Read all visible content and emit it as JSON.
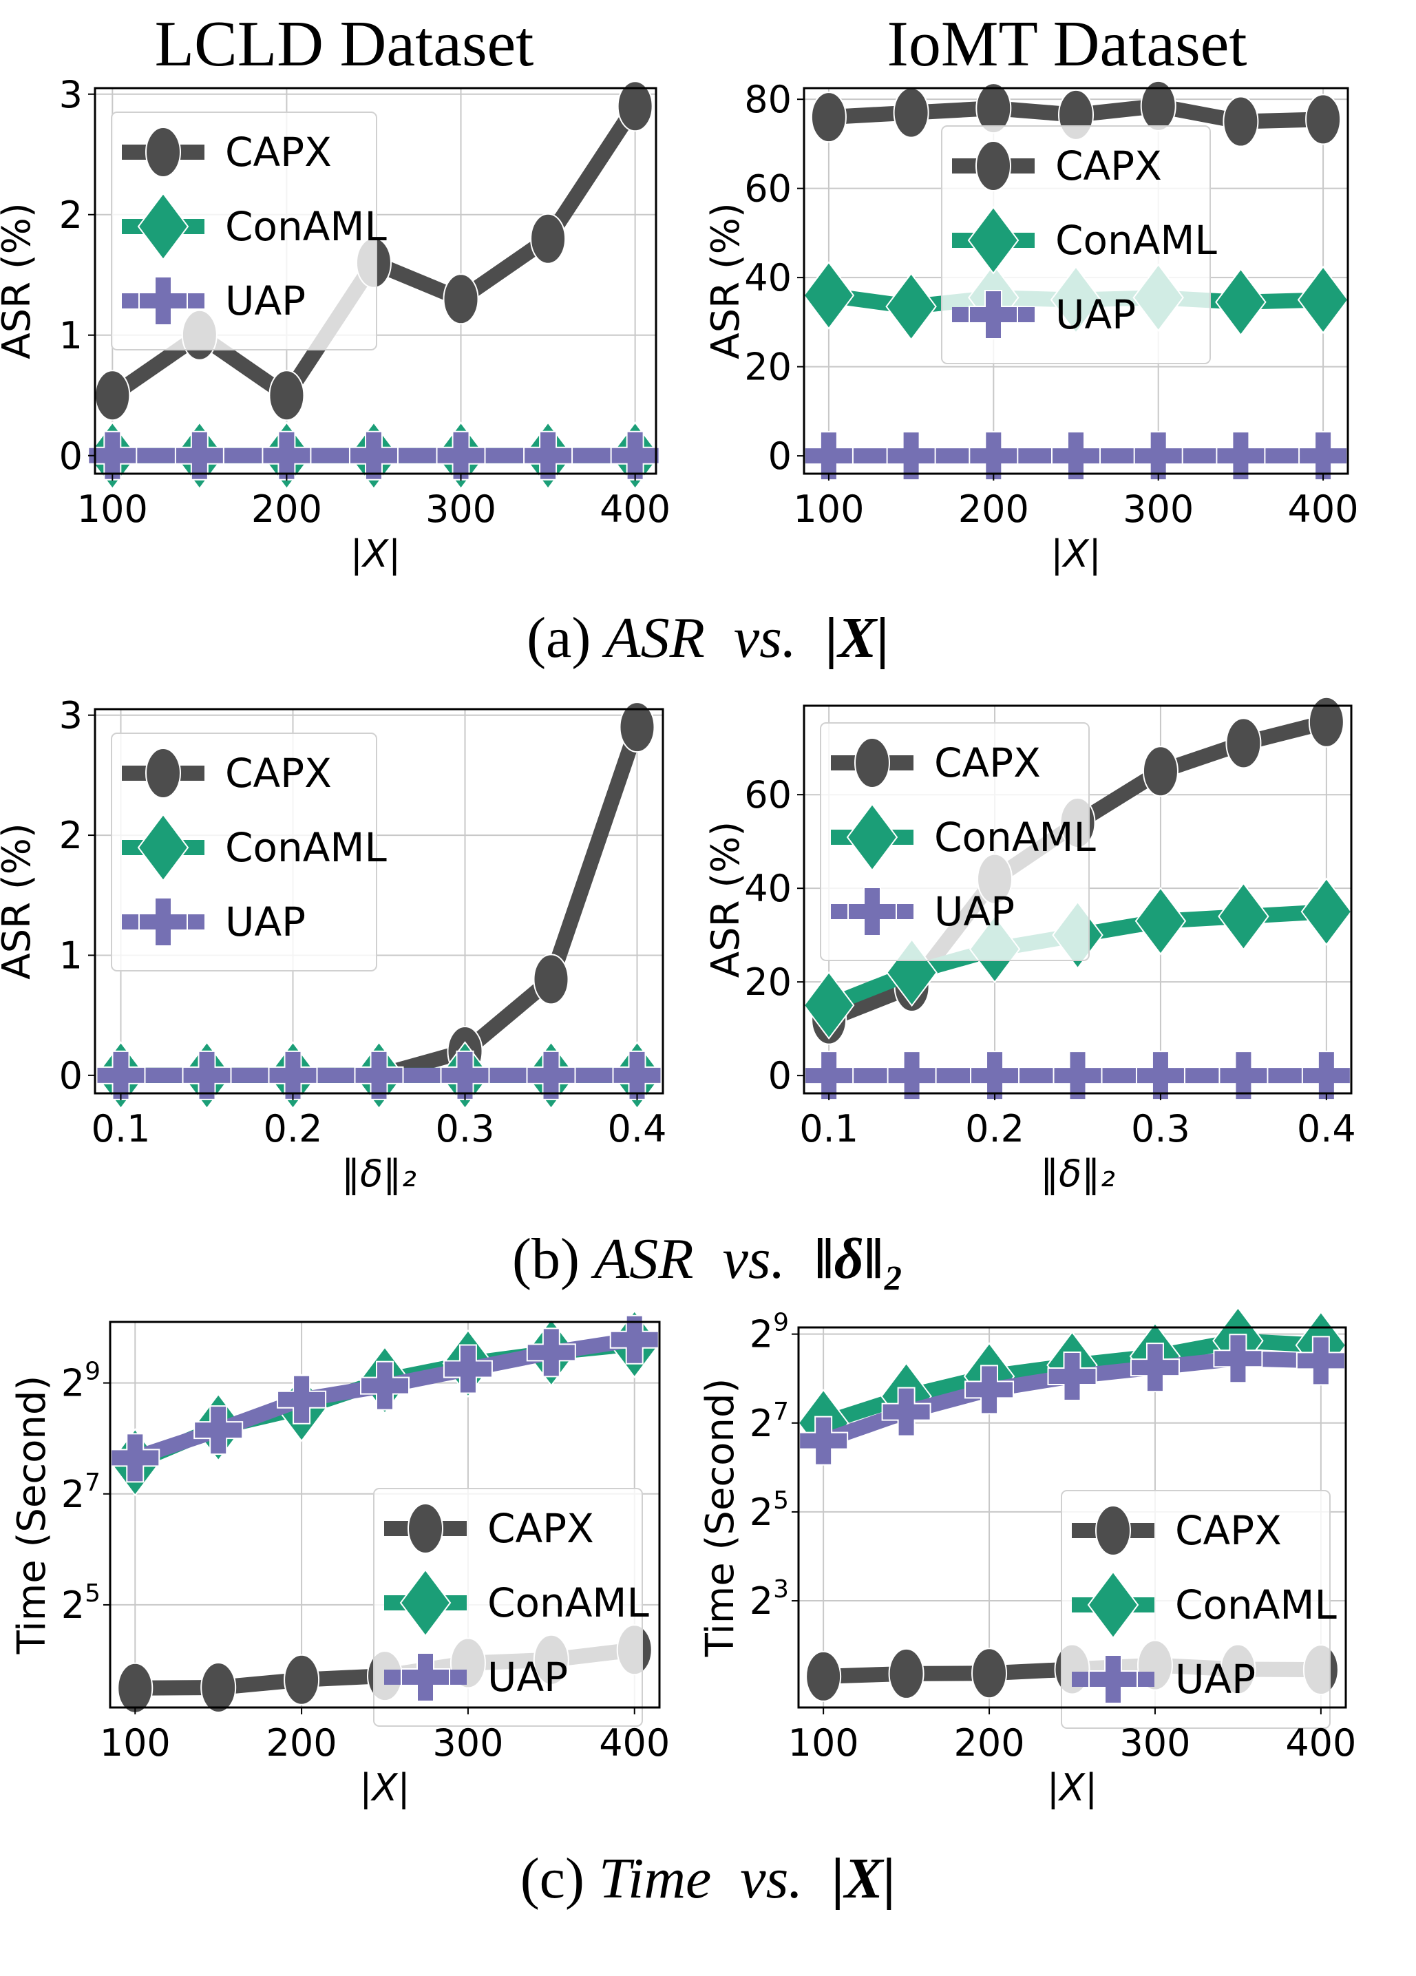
{
  "titles": {
    "left": "LCLD Dataset",
    "right": "IoMT Dataset"
  },
  "captions": {
    "a": {
      "prefix": "(a) ",
      "metric": "ASR",
      "vs": "vs.",
      "var": "|X|"
    },
    "b": {
      "prefix": "(b) ",
      "metric": "ASR",
      "vs": "vs.",
      "var": "‖δ‖₂"
    },
    "c": {
      "prefix": "(c) ",
      "metric": "Time",
      "vs": "vs.",
      "var": "|X|"
    }
  },
  "colors": {
    "CAPX": "#4d4d4d",
    "ConAML": "#1b9e77",
    "UAP": "#7570b3"
  },
  "chart_data": [
    {
      "id": "a-lcld",
      "type": "line",
      "title": "LCLD Dataset",
      "xlabel": "|X|",
      "ylabel": "ASR (%)",
      "x": [
        100,
        150,
        200,
        250,
        300,
        350,
        400
      ],
      "xticks": [
        100,
        200,
        300,
        400
      ],
      "xtick_labels": [
        "100",
        "200",
        "300",
        "400"
      ],
      "yticks": [
        0,
        1,
        2,
        3
      ],
      "ytick_labels": [
        "0",
        "1",
        "2",
        "3"
      ],
      "xlim": [
        90,
        412
      ],
      "ylim": [
        -0.15,
        3.05
      ],
      "yscale": "linear",
      "grid": true,
      "legend_position": "upper-left",
      "series": [
        {
          "name": "CAPX",
          "marker": "circle",
          "values": [
            0.5,
            1.0,
            0.5,
            1.6,
            1.3,
            1.8,
            2.9
          ]
        },
        {
          "name": "ConAML",
          "marker": "diamond",
          "values": [
            0,
            0,
            0,
            0,
            0,
            0,
            0
          ]
        },
        {
          "name": "UAP",
          "marker": "plus",
          "values": [
            0,
            0,
            0,
            0,
            0,
            0,
            0
          ]
        }
      ]
    },
    {
      "id": "a-iomt",
      "type": "line",
      "title": "IoMT Dataset",
      "xlabel": "|X|",
      "ylabel": "ASR (%)",
      "x": [
        100,
        150,
        200,
        250,
        300,
        350,
        400
      ],
      "xticks": [
        100,
        200,
        300,
        400
      ],
      "xtick_labels": [
        "100",
        "200",
        "300",
        "400"
      ],
      "yticks": [
        0,
        20,
        40,
        60,
        80
      ],
      "ytick_labels": [
        "0",
        "20",
        "40",
        "60",
        "80"
      ],
      "xlim": [
        85,
        415
      ],
      "ylim": [
        -4,
        82.5
      ],
      "yscale": "linear",
      "grid": true,
      "legend_position": "upper-center",
      "series": [
        {
          "name": "CAPX",
          "marker": "circle",
          "values": [
            76,
            77,
            78,
            76.5,
            78.5,
            75,
            75.5
          ]
        },
        {
          "name": "ConAML",
          "marker": "diamond",
          "values": [
            36,
            33.5,
            35.5,
            35,
            35.5,
            34.5,
            35
          ]
        },
        {
          "name": "UAP",
          "marker": "plus",
          "values": [
            0,
            0,
            0,
            0,
            0,
            0,
            0
          ]
        }
      ]
    },
    {
      "id": "b-lcld",
      "type": "line",
      "xlabel": "‖δ‖₂",
      "ylabel": "ASR (%)",
      "x": [
        0.1,
        0.15,
        0.2,
        0.25,
        0.3,
        0.35,
        0.4
      ],
      "xticks": [
        0.1,
        0.2,
        0.3,
        0.4
      ],
      "xtick_labels": [
        "0.1",
        "0.2",
        "0.3",
        "0.4"
      ],
      "yticks": [
        0,
        1,
        2,
        3
      ],
      "ytick_labels": [
        "0",
        "1",
        "2",
        "3"
      ],
      "xlim": [
        0.085,
        0.415
      ],
      "ylim": [
        -0.15,
        3.05
      ],
      "yscale": "linear",
      "grid": true,
      "legend_position": "upper-left",
      "series": [
        {
          "name": "CAPX",
          "marker": "circle",
          "values": [
            0,
            0,
            0,
            0,
            0.2,
            0.8,
            2.9
          ]
        },
        {
          "name": "ConAML",
          "marker": "diamond",
          "values": [
            0,
            0,
            0,
            0,
            0,
            0,
            0
          ]
        },
        {
          "name": "UAP",
          "marker": "plus",
          "values": [
            0,
            0,
            0,
            0,
            0,
            0,
            0
          ]
        }
      ]
    },
    {
      "id": "b-iomt",
      "type": "line",
      "xlabel": "‖δ‖₂",
      "ylabel": "ASR (%)",
      "x": [
        0.1,
        0.15,
        0.2,
        0.25,
        0.3,
        0.35,
        0.4
      ],
      "xticks": [
        0.1,
        0.2,
        0.3,
        0.4
      ],
      "xtick_labels": [
        "0.1",
        "0.2",
        "0.3",
        "0.4"
      ],
      "yticks": [
        0,
        20,
        40,
        60
      ],
      "ytick_labels": [
        "0",
        "20",
        "40",
        "60"
      ],
      "xlim": [
        0.085,
        0.415
      ],
      "ylim": [
        -3.8,
        79
      ],
      "yscale": "linear",
      "grid": true,
      "legend_position": "upper-left",
      "series": [
        {
          "name": "CAPX",
          "marker": "circle",
          "values": [
            12,
            19,
            42,
            54,
            65,
            71,
            75.5
          ]
        },
        {
          "name": "ConAML",
          "marker": "diamond",
          "values": [
            15,
            22,
            27,
            30,
            33,
            34,
            35
          ]
        },
        {
          "name": "UAP",
          "marker": "plus",
          "values": [
            0,
            0,
            0,
            0,
            0,
            0,
            0
          ]
        }
      ]
    },
    {
      "id": "c-lcld",
      "type": "line",
      "xlabel": "|X|",
      "ylabel": "Time (Second)",
      "x": [
        100,
        150,
        200,
        250,
        300,
        350,
        400
      ],
      "xticks": [
        100,
        200,
        300,
        400
      ],
      "xtick_labels": [
        "100",
        "200",
        "300",
        "400"
      ],
      "yticks_exp": [
        5,
        7,
        9
      ],
      "ytick_base": "2",
      "xlim": [
        85,
        415
      ],
      "ylim_log2": [
        3.15,
        10.1
      ],
      "yscale": "log2",
      "grid": true,
      "legend_position": "center-right",
      "series": [
        {
          "name": "CAPX",
          "marker": "circle",
          "log2_values": [
            3.5,
            3.51,
            3.65,
            3.72,
            3.95,
            4.01,
            4.19
          ]
        },
        {
          "name": "ConAML",
          "marker": "diamond",
          "log2_values": [
            7.57,
            8.2,
            8.55,
            9.05,
            9.35,
            9.55,
            9.7
          ]
        },
        {
          "name": "UAP",
          "marker": "plus",
          "log2_values": [
            7.65,
            8.15,
            8.7,
            8.95,
            9.25,
            9.55,
            9.78
          ]
        }
      ]
    },
    {
      "id": "c-iomt",
      "type": "line",
      "xlabel": "|X|",
      "ylabel": "Time (Second)",
      "x": [
        100,
        150,
        200,
        250,
        300,
        350,
        400
      ],
      "xticks": [
        100,
        200,
        300,
        400
      ],
      "xtick_labels": [
        "100",
        "200",
        "300",
        "400"
      ],
      "yticks_exp": [
        3,
        5,
        7,
        9
      ],
      "ytick_base": "2",
      "xlim": [
        85,
        415
      ],
      "ylim_log2": [
        0.6,
        9.15
      ],
      "yscale": "log2",
      "grid": true,
      "legend_position": "center-right",
      "series": [
        {
          "name": "CAPX",
          "marker": "circle",
          "log2_values": [
            1.3,
            1.36,
            1.37,
            1.46,
            1.55,
            1.46,
            1.45
          ]
        },
        {
          "name": "ConAML",
          "marker": "diamond",
          "log2_values": [
            7,
            7.6,
            8.05,
            8.3,
            8.5,
            8.85,
            8.75
          ]
        },
        {
          "name": "UAP",
          "marker": "plus",
          "log2_values": [
            6.6,
            7.25,
            7.75,
            8.05,
            8.25,
            8.45,
            8.4
          ]
        }
      ]
    }
  ]
}
